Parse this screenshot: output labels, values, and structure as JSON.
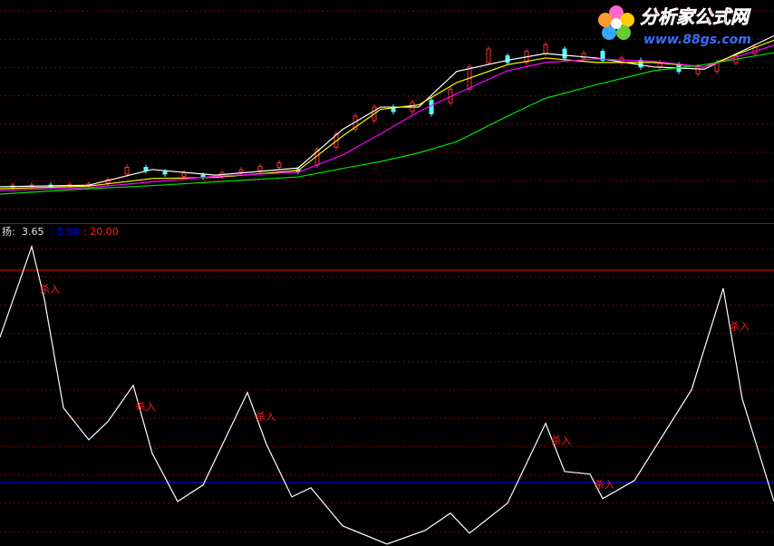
{
  "logo": {
    "title": "分析家公式网",
    "url": "www.88gs.com"
  },
  "chart_data": [
    {
      "type": "candlestick",
      "xlim": [
        0,
        122
      ],
      "ylim": [
        0,
        100
      ],
      "grid": true,
      "up_color": "#ff3232",
      "down_color": "#54ffff",
      "x": [
        0,
        14,
        24,
        34,
        47,
        54,
        60,
        66,
        72,
        80,
        86,
        94,
        103,
        111,
        122
      ],
      "series": [
        {
          "color": "#ffffff",
          "values": [
            16.3,
            17,
            24,
            21.5,
            24.7,
            42,
            52,
            52,
            68,
            73,
            76,
            74,
            70,
            69,
            84
          ]
        },
        {
          "color": "#ffff00",
          "values": [
            15.4,
            16.6,
            20,
            20.5,
            23.6,
            39,
            51,
            53,
            63,
            71,
            74,
            72,
            72,
            70,
            82
          ]
        },
        {
          "color": "#ff00ff",
          "values": [
            14.6,
            15.9,
            18.5,
            21.0,
            22.8,
            30.5,
            40,
            50,
            58,
            68.3,
            72,
            73.6,
            72.5,
            70,
            79.7
          ]
        },
        {
          "color": "#00e000",
          "values": [
            13.0,
            15.4,
            16.8,
            18.5,
            20.7,
            24.5,
            27.6,
            31.5,
            36.5,
            48.0,
            56,
            62,
            68.3,
            71,
            76.4
          ]
        }
      ],
      "candles": {
        "x": [
          2,
          5,
          8,
          11,
          14,
          17,
          20,
          23,
          26,
          29,
          32,
          35,
          38,
          41,
          44,
          47,
          50,
          53,
          56,
          59,
          62,
          65,
          68,
          71,
          74,
          77,
          80,
          83,
          86,
          89,
          92,
          95,
          98,
          101,
          104,
          107,
          110,
          113,
          116,
          119
        ],
        "open": [
          16,
          16.5,
          17,
          16.5,
          17,
          18,
          22,
          25,
          23,
          21,
          21.5,
          21,
          23,
          23.5,
          25,
          24,
          26,
          34,
          42,
          46,
          52,
          50,
          55,
          54,
          60,
          72,
          75,
          72,
          76,
          78,
          74,
          77,
          72,
          73,
          70,
          71,
          67,
          68,
          72,
          76
        ],
        "close": [
          17,
          17,
          16.5,
          17.2,
          17.5,
          19.5,
          25,
          23.5,
          22,
          22.5,
          20.5,
          22.5,
          24,
          25.5,
          27,
          23,
          33,
          40,
          48,
          52,
          50,
          54,
          49,
          60,
          70,
          78,
          72,
          77,
          80,
          74,
          76,
          73,
          74,
          70,
          72,
          68,
          70,
          72,
          75,
          79
        ]
      }
    },
    {
      "type": "line",
      "xlim": [
        0,
        122
      ],
      "ylim": [
        0.5,
        22.3
      ],
      "grid": true,
      "label": "扬:",
      "value_label": "3.65",
      "x": [
        0,
        5,
        7,
        10,
        14,
        17,
        21,
        24,
        28,
        32,
        39,
        42,
        46,
        49,
        54,
        61,
        67,
        71,
        74,
        80,
        86,
        89,
        93,
        95,
        100,
        109,
        114,
        117,
        122
      ],
      "series": [
        {
          "color": "#ffffff",
          "values": [
            15.26,
            21.67,
            17.95,
            10.26,
            8.01,
            9.29,
            11.86,
            7.05,
            3.65,
            4.81,
            11.35,
            7.69,
            3.97,
            4.62,
            1.92,
            0.64,
            1.6,
            2.82,
            1.41,
            3.53,
            9.17,
            5.77,
            5.58,
            3.85,
            5.13,
            11.54,
            18.72,
            10.9,
            3.65
          ]
        }
      ],
      "reference_lines": [
        {
          "value": 5,
          "label": ": 5.00",
          "color": "#0000ff"
        },
        {
          "value": 20,
          "label": ": 20.00",
          "color": "#ff0000"
        }
      ],
      "annotations": [
        {
          "text": "杀入",
          "x": 6.3,
          "y": 18.6
        },
        {
          "text": "杀入",
          "x": 21.4,
          "y": 10.3
        },
        {
          "text": "杀入",
          "x": 40.3,
          "y": 9.6
        },
        {
          "text": "杀入",
          "x": 86.9,
          "y": 7.9
        },
        {
          "text": "杀入",
          "x": 93.7,
          "y": 4.8
        },
        {
          "text": "杀入",
          "x": 115,
          "y": 16.0
        }
      ]
    }
  ]
}
